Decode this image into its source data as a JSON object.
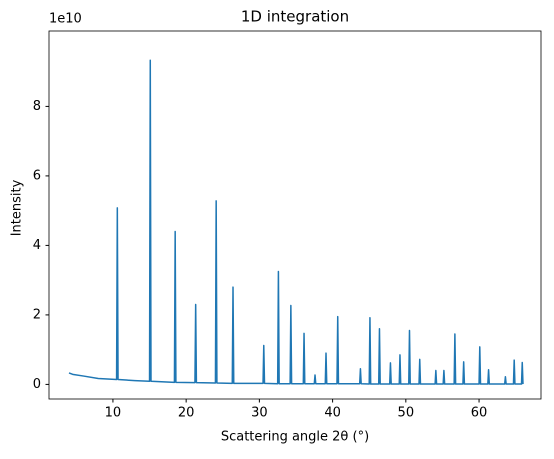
{
  "chart_data": {
    "type": "line",
    "title": "1D integration",
    "x_label": "Scattering angle 2θ (°)",
    "y_label": "Intensity",
    "y_offset_label": "1e10",
    "x": [
      4.0,
      4.5,
      6,
      8,
      10.5,
      10.6,
      10.7,
      13,
      15.0,
      15.1,
      15.2,
      18.4,
      18.5,
      18.6,
      21.2,
      21.3,
      21.4,
      24.0,
      24.1,
      24.2,
      26.3,
      26.4,
      26.5,
      30.5,
      30.6,
      30.7,
      32.5,
      32.6,
      32.7,
      34.2,
      34.3,
      34.4,
      36.0,
      36.1,
      36.2,
      37.5,
      37.6,
      37.7,
      39.0,
      39.1,
      39.2,
      40.6,
      40.7,
      40.8,
      43.7,
      43.8,
      43.9,
      45.0,
      45.1,
      45.2,
      46.3,
      46.4,
      46.5,
      47.8,
      47.9,
      48.0,
      49.1,
      49.2,
      49.3,
      50.4,
      50.5,
      50.6,
      51.8,
      51.9,
      52.0,
      54.0,
      54.1,
      54.2,
      55.1,
      55.2,
      55.3,
      56.6,
      56.7,
      56.8,
      57.8,
      57.9,
      58.0,
      60.0,
      60.1,
      60.2,
      61.2,
      61.3,
      61.4,
      63.5,
      63.6,
      63.7,
      64.7,
      64.8,
      64.9,
      65.8,
      65.9,
      66.0
    ],
    "series": [
      {
        "name": "intensity",
        "color": "#1f77b4",
        "values": [
          0.33,
          0.29,
          0.24,
          0.17,
          0.14,
          5.08,
          0.14,
          0.11,
          0.09,
          9.33,
          0.09,
          0.06,
          4.4,
          0.06,
          0.05,
          2.3,
          0.05,
          0.04,
          5.28,
          0.04,
          0.03,
          2.8,
          0.03,
          0.03,
          1.12,
          0.03,
          0.02,
          3.25,
          0.02,
          0.02,
          2.27,
          0.02,
          0.02,
          1.47,
          0.02,
          0.02,
          0.27,
          0.02,
          0.02,
          0.9,
          0.02,
          0.02,
          1.95,
          0.02,
          0.02,
          0.45,
          0.02,
          0.01,
          1.92,
          0.01,
          0.01,
          1.6,
          0.01,
          0.01,
          0.62,
          0.01,
          0.01,
          0.85,
          0.01,
          0.01,
          1.55,
          0.01,
          0.01,
          0.72,
          0.01,
          0.01,
          0.4,
          0.01,
          0.01,
          0.4,
          0.01,
          0.01,
          1.45,
          0.01,
          0.01,
          0.65,
          0.01,
          0.01,
          1.08,
          0.01,
          0.01,
          0.42,
          0.01,
          0.01,
          0.22,
          0.01,
          0.01,
          0.7,
          0.01,
          0.01,
          0.63,
          0.01
        ]
      }
    ],
    "xlim": [
      1.27,
      68.46
    ],
    "ylim": [
      -0.42,
      10.17
    ],
    "xticks": [
      10,
      20,
      30,
      40,
      50,
      60
    ],
    "yticks": [
      0,
      2,
      4,
      6,
      8
    ],
    "grid": false
  }
}
